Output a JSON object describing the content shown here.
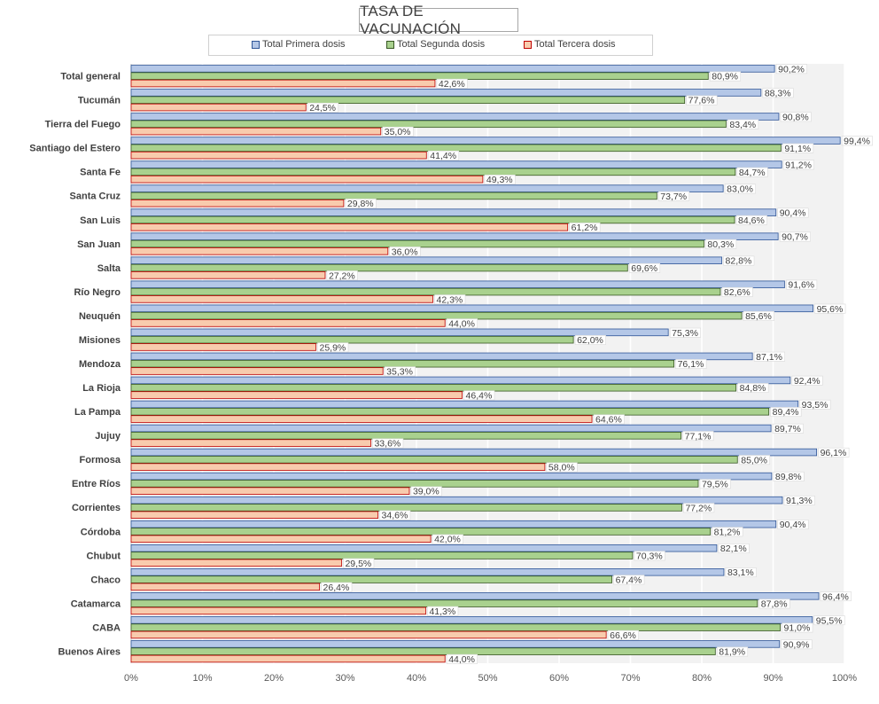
{
  "chart_data": {
    "type": "bar",
    "orientation": "horizontal",
    "title": "TASA DE VACUNACIÓN",
    "categories": [
      "Total general",
      "Tucumán",
      "Tierra del Fuego",
      "Santiago del Estero",
      "Santa Fe",
      "Santa Cruz",
      "San Luis",
      "San Juan",
      "Salta",
      "Río Negro",
      "Neuquén",
      "Misiones",
      "Mendoza",
      "La Rioja",
      "La Pampa",
      "Jujuy",
      "Formosa",
      "Entre Ríos",
      "Corrientes",
      "Córdoba",
      "Chubut",
      "Chaco",
      "Catamarca",
      "CABA",
      "Buenos Aires"
    ],
    "series": [
      {
        "name": "Total Primera dosis",
        "color": "#b4c7e7",
        "border": "#2f5597",
        "values": [
          90.2,
          88.3,
          90.8,
          99.4,
          91.2,
          83.0,
          90.4,
          90.7,
          82.8,
          91.6,
          95.6,
          75.3,
          87.1,
          92.4,
          93.5,
          89.7,
          96.1,
          89.8,
          91.3,
          90.4,
          82.1,
          83.1,
          96.4,
          95.5,
          90.9
        ],
        "labels": [
          "90,2%",
          "88,3%",
          "90,8%",
          "99,4%",
          "91,2%",
          "83,0%",
          "90,4%",
          "90,7%",
          "82,8%",
          "91,6%",
          "95,6%",
          "75,3%",
          "87,1%",
          "92,4%",
          "93,5%",
          "89,7%",
          "96,1%",
          "89,8%",
          "91,3%",
          "90,4%",
          "82,1%",
          "83,1%",
          "96,4%",
          "95,5%",
          "90,9%"
        ]
      },
      {
        "name": "Total Segunda dosis",
        "color": "#a9d18e",
        "border": "#385723",
        "values": [
          80.9,
          77.6,
          83.4,
          91.1,
          84.7,
          73.7,
          84.6,
          80.3,
          69.6,
          82.6,
          85.6,
          62.0,
          76.1,
          84.8,
          89.4,
          77.1,
          85.0,
          79.5,
          77.2,
          81.2,
          70.3,
          67.4,
          87.8,
          91.0,
          81.9
        ],
        "labels": [
          "80,9%",
          "77,6%",
          "83,4%",
          "91,1%",
          "84,7%",
          "73,7%",
          "84,6%",
          "80,3%",
          "69,6%",
          "82,6%",
          "85,6%",
          "62,0%",
          "76,1%",
          "84,8%",
          "89,4%",
          "77,1%",
          "85,0%",
          "79,5%",
          "77,2%",
          "81,2%",
          "70,3%",
          "67,4%",
          "87,8%",
          "91,0%",
          "81,9%"
        ]
      },
      {
        "name": "Total Tercera dosis",
        "color": "#f8cbad",
        "border": "#c00000",
        "values": [
          42.6,
          24.5,
          35.0,
          41.4,
          49.3,
          29.8,
          61.2,
          36.0,
          27.2,
          42.3,
          44.0,
          25.9,
          35.3,
          46.4,
          64.6,
          33.6,
          58.0,
          39.0,
          34.6,
          42.0,
          29.5,
          26.4,
          41.3,
          66.6,
          44.0
        ],
        "labels": [
          "42,6%",
          "24,5%",
          "35,0%",
          "41,4%",
          "49,3%",
          "29,8%",
          "61,2%",
          "36,0%",
          "27,2%",
          "42,3%",
          "44,0%",
          "25,9%",
          "35,3%",
          "46,4%",
          "64,6%",
          "33,6%",
          "58,0%",
          "39,0%",
          "34,6%",
          "42,0%",
          "29,5%",
          "26,4%",
          "41,3%",
          "66,6%",
          "44,0%"
        ]
      }
    ],
    "xlim": [
      0,
      100
    ],
    "xticks": [
      0,
      10,
      20,
      30,
      40,
      50,
      60,
      70,
      80,
      90,
      100
    ],
    "xtick_labels": [
      "0%",
      "10%",
      "20%",
      "30%",
      "40%",
      "50%",
      "60%",
      "70%",
      "80%",
      "90%",
      "100%"
    ],
    "grid": true,
    "legend_position": "top"
  }
}
